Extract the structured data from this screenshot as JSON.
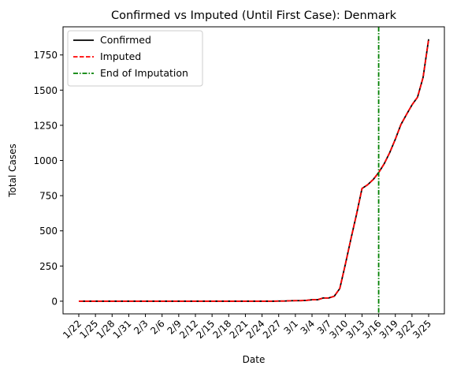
{
  "chart_data": {
    "type": "line",
    "title": "Confirmed vs Imputed (Until First Case): Denmark",
    "xlabel": "Date",
    "ylabel": "Total Cases",
    "ylim": [
      -90,
      1950
    ],
    "yticks": [
      0,
      250,
      500,
      750,
      1000,
      1250,
      1500,
      1750
    ],
    "x": [
      "1/22",
      "1/23",
      "1/24",
      "1/25",
      "1/26",
      "1/27",
      "1/28",
      "1/29",
      "1/30",
      "1/31",
      "2/1",
      "2/2",
      "2/3",
      "2/4",
      "2/5",
      "2/6",
      "2/7",
      "2/8",
      "2/9",
      "2/10",
      "2/11",
      "2/12",
      "2/13",
      "2/14",
      "2/15",
      "2/16",
      "2/17",
      "2/18",
      "2/19",
      "2/20",
      "2/21",
      "2/22",
      "2/23",
      "2/24",
      "2/25",
      "2/26",
      "2/27",
      "2/28",
      "2/29",
      "3/1",
      "3/2",
      "3/3",
      "3/4",
      "3/5",
      "3/6",
      "3/7",
      "3/8",
      "3/9",
      "3/10",
      "3/11",
      "3/12",
      "3/13",
      "3/14",
      "3/15",
      "3/16",
      "3/17",
      "3/18",
      "3/19",
      "3/20",
      "3/21",
      "3/22",
      "3/23",
      "3/24",
      "3/25"
    ],
    "xtick_labels": [
      "1/22",
      "1/25",
      "1/28",
      "1/31",
      "2/3",
      "2/6",
      "2/9",
      "2/12",
      "2/15",
      "2/18",
      "2/21",
      "2/24",
      "2/27",
      "3/1",
      "3/4",
      "3/7",
      "3/10",
      "3/13",
      "3/16",
      "3/19",
      "3/22",
      "3/25"
    ],
    "series": [
      {
        "name": "Confirmed",
        "color": "#000000",
        "dash": "solid",
        "values": [
          0,
          0,
          0,
          0,
          0,
          0,
          0,
          0,
          0,
          0,
          0,
          0,
          0,
          0,
          0,
          0,
          0,
          0,
          0,
          0,
          0,
          0,
          0,
          0,
          0,
          0,
          0,
          0,
          0,
          0,
          0,
          0,
          0,
          0,
          0,
          0,
          1,
          1,
          3,
          4,
          4,
          6,
          10,
          10,
          23,
          23,
          35,
          90,
          262,
          442,
          615,
          801,
          827,
          864,
          914,
          977,
          1057,
          1151,
          1255,
          1326,
          1395,
          1450,
          1591,
          1862
        ]
      },
      {
        "name": "Imputed",
        "color": "#ff0000",
        "dash": "dashed",
        "values": [
          0,
          0,
          0,
          0,
          0,
          0,
          0,
          0,
          0,
          0,
          0,
          0,
          0,
          0,
          0,
          0,
          0,
          0,
          0,
          0,
          0,
          0,
          0,
          0,
          0,
          0,
          0,
          0,
          0,
          0,
          0,
          0,
          0,
          0,
          0,
          0,
          1,
          1,
          3,
          4,
          4,
          6,
          10,
          10,
          23,
          23,
          35,
          90,
          262,
          442,
          615,
          801,
          827,
          864,
          914,
          977,
          1057,
          1151,
          1255,
          1326,
          1395,
          1450,
          1591,
          1862
        ]
      }
    ],
    "vline": {
      "name": "End of Imputation",
      "x": "3/16",
      "color": "#008000",
      "dash": "dash-dot"
    },
    "legend": {
      "position": "top-left"
    },
    "grid": false
  }
}
